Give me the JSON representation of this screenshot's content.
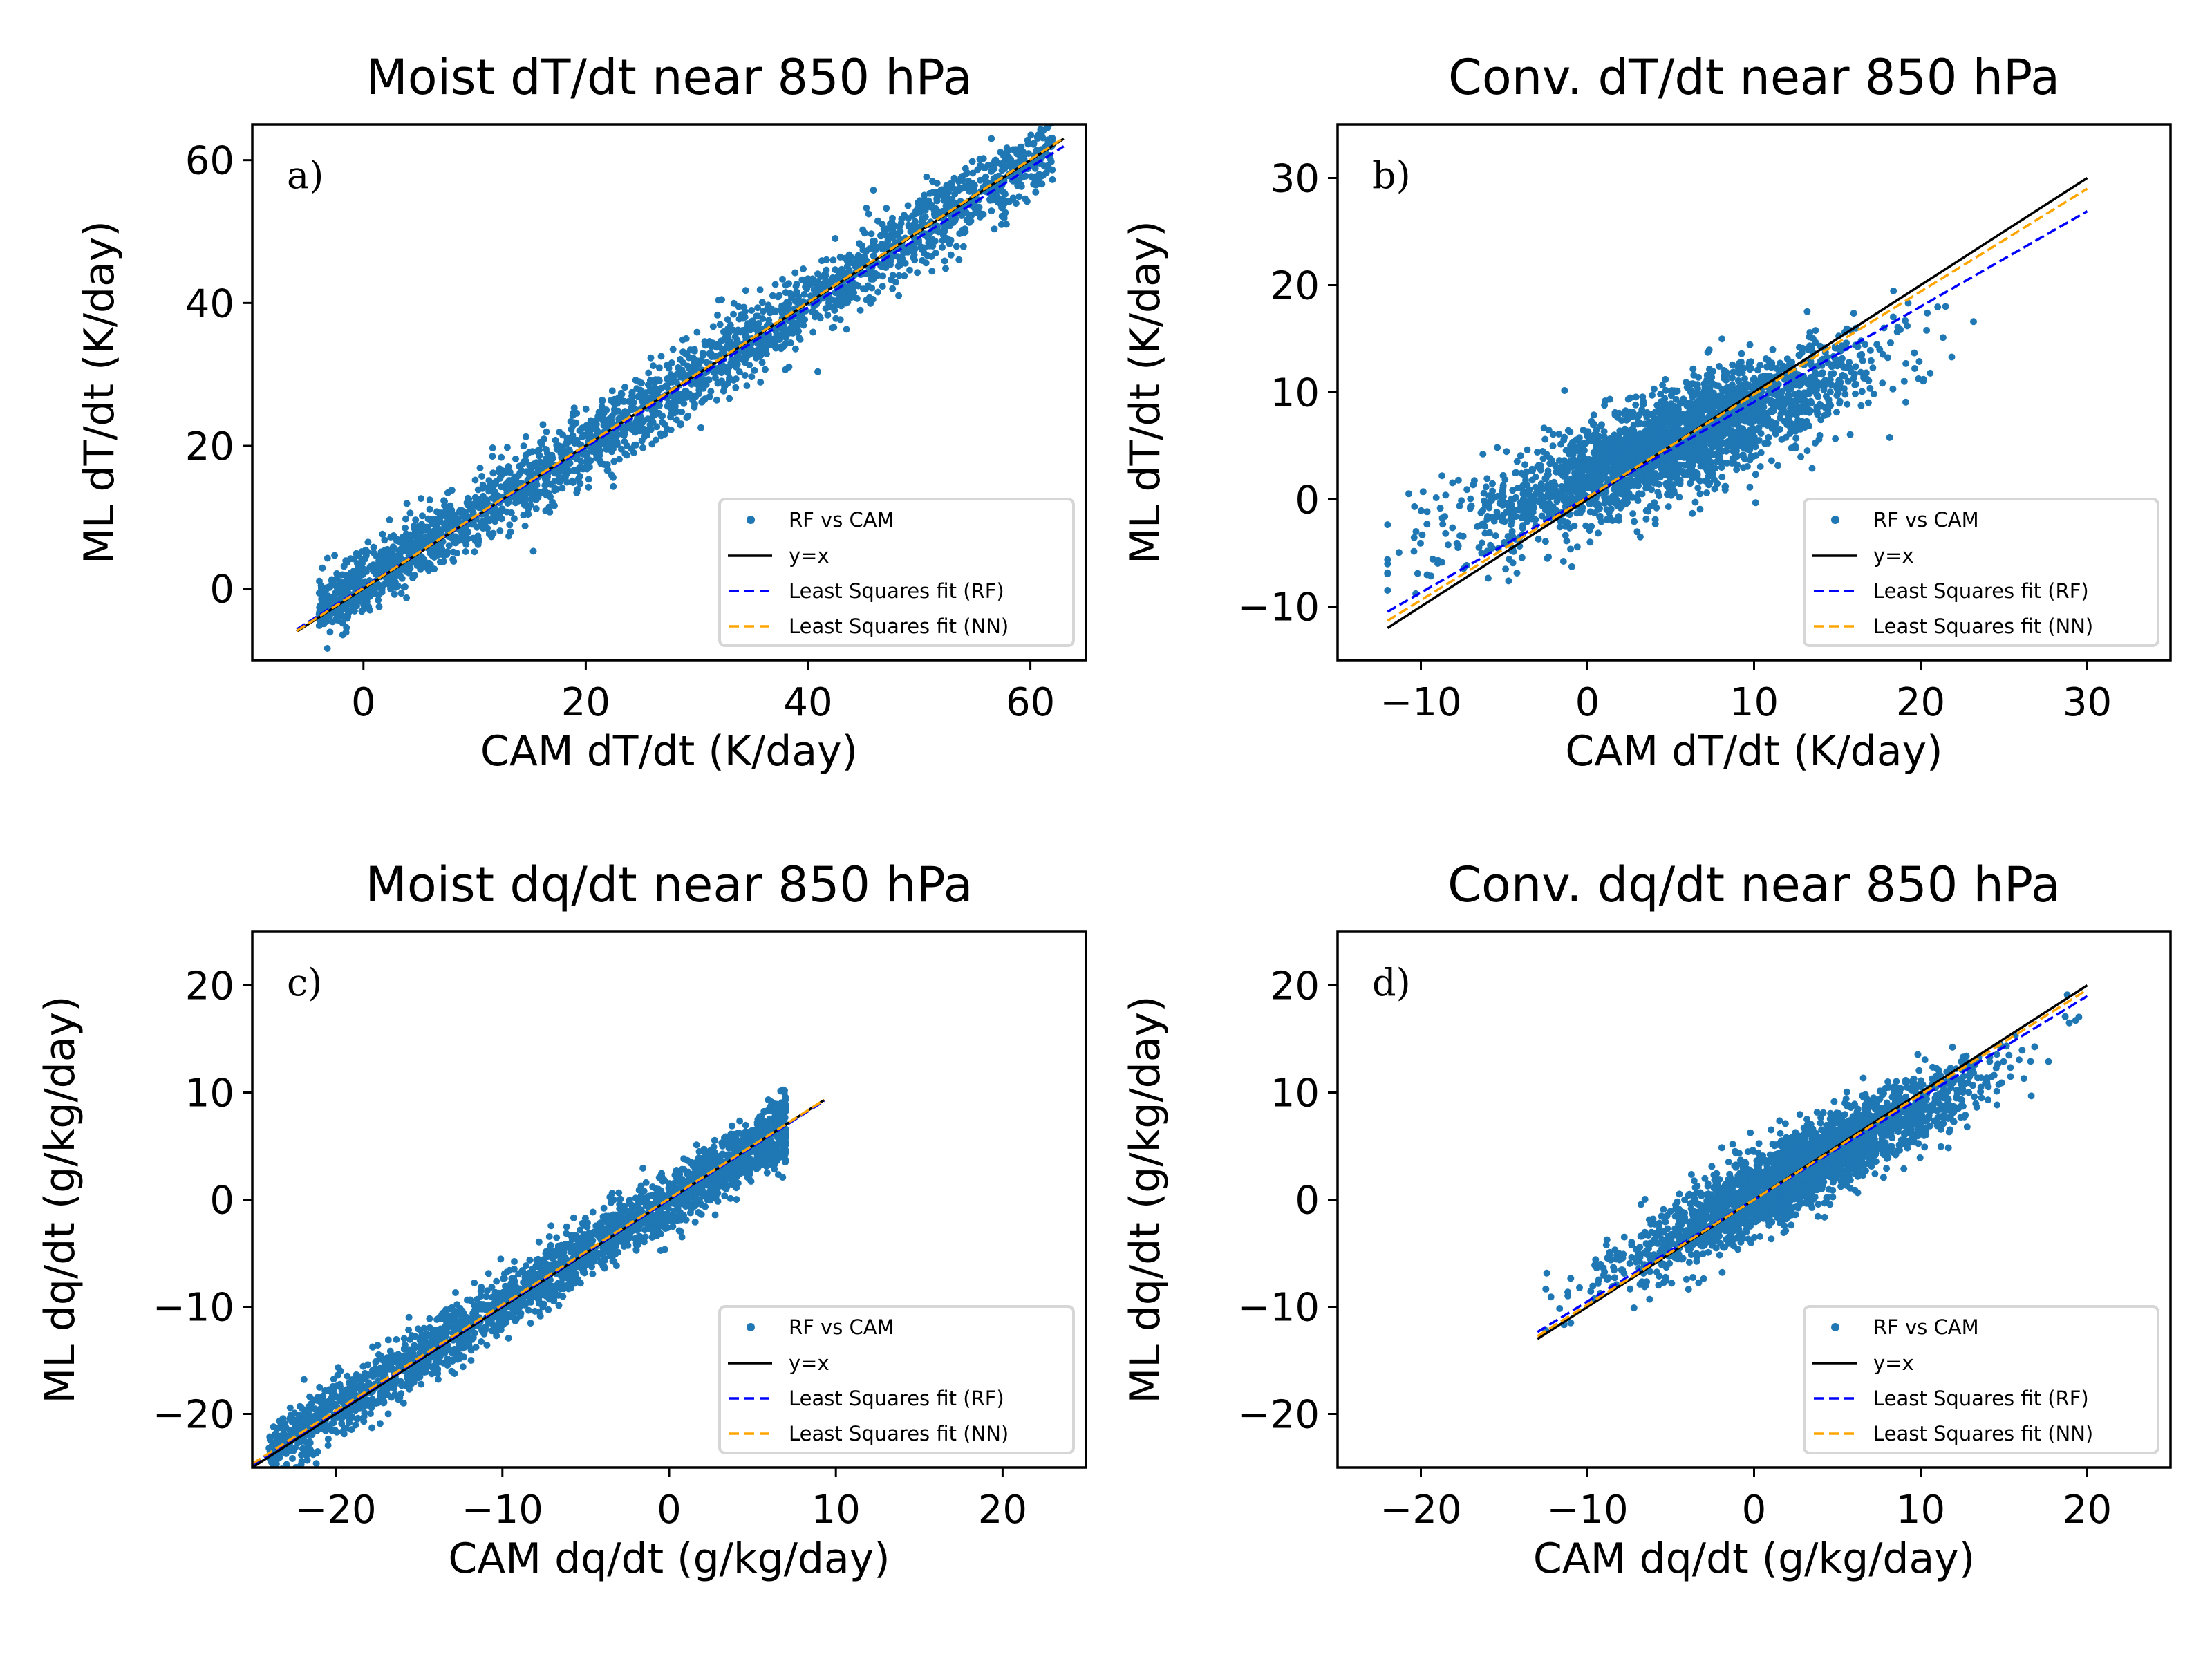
{
  "colors": {
    "scatter": "#1f77b4",
    "identity": "#000000",
    "rf_fit": "#0000ff",
    "nn_fit": "#ffa500"
  },
  "legend": {
    "placement": "lower-right",
    "entries": [
      "RF vs CAM",
      "y=x",
      "Least Squares fit (RF)",
      "Least Squares fit (NN)"
    ]
  },
  "chart_data": [
    {
      "type": "scatter",
      "panel_label": "a)",
      "title": "Moist dT/dt near 850 hPa",
      "xlabel": "CAM dT/dt (K/day)",
      "ylabel": "ML dT/dt (K/day)",
      "xlim": [
        -10,
        65
      ],
      "ylim": [
        -10,
        65
      ],
      "xticks": [
        "0",
        "20",
        "40",
        "60"
      ],
      "yticks": [
        "0",
        "20",
        "40",
        "60"
      ],
      "xtick_values": [
        0,
        20,
        40,
        60
      ],
      "ytick_values": [
        0,
        20,
        40,
        60
      ],
      "x_extent": [
        -6,
        63
      ],
      "fits": {
        "identity": {
          "slope": 1,
          "intercept": 0
        },
        "rf": {
          "slope": 0.98,
          "intercept": 0.2
        },
        "nn": {
          "slope": 1.0,
          "intercept": 0.1
        }
      },
      "grid": false
    },
    {
      "type": "scatter",
      "panel_label": "b)",
      "title": "Conv. dT/dt near 850 hPa",
      "xlabel": "CAM dT/dt (K/day)",
      "ylabel": "ML dT/dt (K/day)",
      "xlim": [
        -15,
        35
      ],
      "ylim": [
        -15,
        35
      ],
      "xticks": [
        "−10",
        "0",
        "10",
        "20",
        "30"
      ],
      "yticks": [
        "−10",
        "0",
        "10",
        "20",
        "30"
      ],
      "xtick_values": [
        -10,
        0,
        10,
        20,
        30
      ],
      "ytick_values": [
        -10,
        0,
        10,
        20,
        30
      ],
      "x_extent": [
        -12,
        30
      ],
      "fits": {
        "identity": {
          "slope": 1,
          "intercept": 0
        },
        "rf": {
          "slope": 0.89,
          "intercept": 0.2
        },
        "nn": {
          "slope": 0.96,
          "intercept": 0.2
        }
      },
      "grid": false
    },
    {
      "type": "scatter",
      "panel_label": "c)",
      "title": "Moist dq/dt near 850 hPa",
      "xlabel": "CAM dq/dt (g/kg/day)",
      "ylabel": "ML dq/dt (g/kg/day)",
      "xlim": [
        -25,
        25
      ],
      "ylim": [
        -25,
        25
      ],
      "xticks": [
        "−20",
        "−10",
        "0",
        "10",
        "20"
      ],
      "yticks": [
        "−20",
        "−10",
        "0",
        "10",
        "20"
      ],
      "xtick_values": [
        -20,
        -10,
        0,
        10,
        20
      ],
      "ytick_values": [
        -20,
        -10,
        0,
        10,
        20
      ],
      "x_extent": [
        -25,
        9.3
      ],
      "fits": {
        "identity": {
          "slope": 1,
          "intercept": 0
        },
        "rf": {
          "slope": 0.99,
          "intercept": 0.0
        },
        "nn": {
          "slope": 0.99,
          "intercept": 0.1
        }
      },
      "grid": false
    },
    {
      "type": "scatter",
      "panel_label": "d)",
      "title": "Conv. dq/dt near 850 hPa",
      "xlabel": "CAM dq/dt (g/kg/day)",
      "ylabel": "ML dq/dt (g/kg/day)",
      "xlim": [
        -25,
        25
      ],
      "ylim": [
        -25,
        25
      ],
      "xticks": [
        "−20",
        "−10",
        "0",
        "10",
        "20"
      ],
      "yticks": [
        "−20",
        "−10",
        "0",
        "10",
        "20"
      ],
      "xtick_values": [
        -20,
        -10,
        0,
        10,
        20
      ],
      "ytick_values": [
        -20,
        -10,
        0,
        10,
        20
      ],
      "x_extent": [
        -13,
        20
      ],
      "fits": {
        "identity": {
          "slope": 1,
          "intercept": 0
        },
        "rf": {
          "slope": 0.95,
          "intercept": 0.0
        },
        "nn": {
          "slope": 0.98,
          "intercept": 0.0
        }
      },
      "grid": false
    }
  ]
}
